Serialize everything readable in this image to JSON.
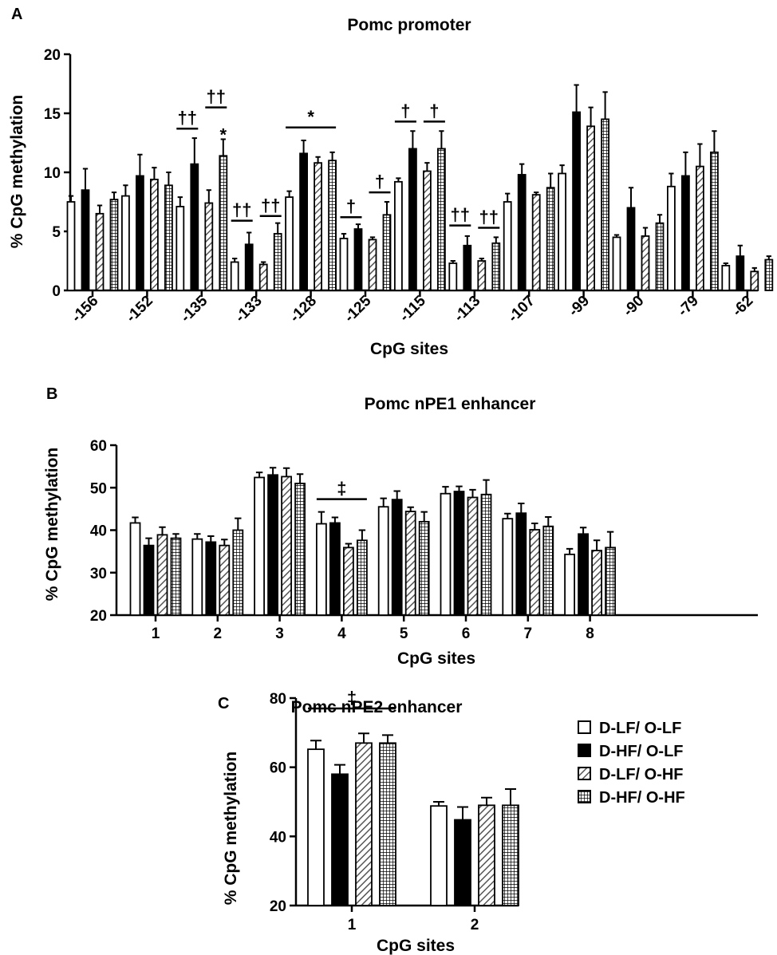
{
  "series": [
    {
      "name": "D-LF/ O-LF",
      "pattern": "white"
    },
    {
      "name": "D-HF/ O-LF",
      "pattern": "black"
    },
    {
      "name": "D-LF/ O-HF",
      "pattern": "hatch"
    },
    {
      "name": "D-HF/ O-HF",
      "pattern": "grid"
    }
  ],
  "chart_data": [
    {
      "panel": "A",
      "type": "bar",
      "title": "Pomc promoter",
      "xlabel": "CpG sites",
      "ylabel": "% CpG methylation",
      "ylim": [
        0,
        20
      ],
      "yticks": [
        0,
        5,
        10,
        15,
        20
      ],
      "categories": [
        "-156",
        "-152",
        "-135",
        "-133",
        "-128",
        "-125",
        "-115",
        "-113",
        "-107",
        "-99",
        "-90",
        "-79",
        "-62"
      ],
      "series": [
        {
          "name": "D-LF/ O-LF",
          "values": [
            7.5,
            8.0,
            7.1,
            2.4,
            7.9,
            4.4,
            9.2,
            2.3,
            7.5,
            9.9,
            4.5,
            8.8,
            2.1
          ],
          "errors": [
            0.5,
            0.9,
            0.8,
            0.3,
            0.5,
            0.4,
            0.3,
            0.2,
            0.7,
            0.7,
            0.2,
            1.1,
            0.2
          ]
        },
        {
          "name": "D-HF/ O-LF",
          "values": [
            8.5,
            9.7,
            10.7,
            3.9,
            11.6,
            5.2,
            12.0,
            3.8,
            9.8,
            15.1,
            7.0,
            9.7,
            2.9
          ],
          "errors": [
            1.8,
            1.8,
            2.2,
            1.0,
            1.1,
            0.4,
            1.5,
            0.8,
            0.9,
            2.3,
            1.7,
            2.0,
            0.9
          ]
        },
        {
          "name": "D-LF/ O-HF",
          "values": [
            6.5,
            9.4,
            7.4,
            2.2,
            10.8,
            4.3,
            10.1,
            2.5,
            8.1,
            13.9,
            4.6,
            10.5,
            1.6
          ],
          "errors": [
            0.7,
            1.0,
            1.1,
            0.2,
            0.5,
            0.2,
            0.7,
            0.2,
            0.2,
            1.6,
            0.7,
            1.9,
            0.3
          ]
        },
        {
          "name": "D-HF/ O-HF",
          "values": [
            7.7,
            8.9,
            11.4,
            4.8,
            11.0,
            6.4,
            12.0,
            4.0,
            8.7,
            14.5,
            5.7,
            11.7,
            2.6
          ],
          "errors": [
            0.6,
            1.1,
            1.4,
            0.9,
            0.7,
            1.1,
            1.5,
            0.5,
            1.2,
            2.3,
            0.7,
            1.8,
            0.3
          ]
        }
      ],
      "annotations": [
        {
          "symbol": "††",
          "x_from": [
            2,
            0
          ],
          "x_to": [
            2,
            1
          ],
          "y": 13.7
        },
        {
          "symbol": "††",
          "x_from": [
            2,
            2
          ],
          "x_to": [
            2,
            3
          ],
          "y": 15.5
        },
        {
          "symbol": "*",
          "x_from": [
            2,
            3
          ],
          "x_to": [
            2,
            3
          ],
          "y": 13.2,
          "no_line": true
        },
        {
          "symbol": "††",
          "x_from": [
            3,
            0
          ],
          "x_to": [
            3,
            1
          ],
          "y": 5.9
        },
        {
          "symbol": "††",
          "x_from": [
            3,
            2
          ],
          "x_to": [
            3,
            3
          ],
          "y": 6.3
        },
        {
          "symbol": "*",
          "x_from": [
            4,
            0
          ],
          "x_to": [
            4,
            3
          ],
          "y": 13.8
        },
        {
          "symbol": "†",
          "x_from": [
            5,
            0
          ],
          "x_to": [
            5,
            1
          ],
          "y": 6.2
        },
        {
          "symbol": "†",
          "x_from": [
            5,
            2
          ],
          "x_to": [
            5,
            3
          ],
          "y": 8.3
        },
        {
          "symbol": "†",
          "x_from": [
            6,
            0
          ],
          "x_to": [
            6,
            1
          ],
          "y": 14.3
        },
        {
          "symbol": "†",
          "x_from": [
            6,
            2
          ],
          "x_to": [
            6,
            3
          ],
          "y": 14.3
        },
        {
          "symbol": "††",
          "x_from": [
            7,
            0
          ],
          "x_to": [
            7,
            1
          ],
          "y": 5.5
        },
        {
          "symbol": "††",
          "x_from": [
            7,
            2
          ],
          "x_to": [
            7,
            3
          ],
          "y": 5.3
        }
      ]
    },
    {
      "panel": "B",
      "type": "bar",
      "title": "Pomc nPE1 enhancer",
      "xlabel": "CpG sites",
      "ylabel": "% CpG methylation",
      "ylim": [
        20,
        60
      ],
      "yticks": [
        20,
        30,
        40,
        50,
        60
      ],
      "categories": [
        "1",
        "2",
        "3",
        "4",
        "5",
        "6",
        "7",
        "8"
      ],
      "series": [
        {
          "name": "D-LF/ O-LF",
          "values": [
            41.7,
            37.9,
            52.4,
            41.5,
            45.5,
            48.6,
            42.7,
            34.3
          ],
          "errors": [
            1.3,
            1.2,
            1.2,
            2.8,
            2.0,
            1.6,
            1.2,
            1.3
          ]
        },
        {
          "name": "D-HF/ O-LF",
          "values": [
            36.4,
            37.2,
            53.0,
            41.7,
            47.2,
            49.1,
            44.0,
            39.1
          ],
          "errors": [
            1.7,
            1.4,
            1.7,
            1.3,
            2.0,
            1.2,
            2.3,
            1.5
          ]
        },
        {
          "name": "D-LF/ O-HF",
          "values": [
            38.9,
            36.4,
            52.6,
            35.9,
            44.4,
            47.7,
            40.1,
            35.2
          ],
          "errors": [
            1.8,
            1.4,
            2.0,
            0.9,
            1.0,
            1.8,
            1.5,
            2.4
          ]
        },
        {
          "name": "D-HF/ O-HF",
          "values": [
            38.1,
            40.0,
            51.0,
            37.6,
            42.0,
            48.4,
            40.9,
            35.9
          ],
          "errors": [
            1.0,
            2.8,
            2.2,
            2.4,
            2.3,
            3.4,
            2.2,
            3.7
          ]
        }
      ],
      "annotations": [
        {
          "symbol": "‡",
          "x_from": [
            3,
            0
          ],
          "x_to": [
            3,
            3
          ],
          "y": 47.3
        }
      ]
    },
    {
      "panel": "C",
      "type": "bar",
      "title": "Pomc nPE2 enhancer",
      "xlabel": "CpG sites",
      "ylabel": "% CpG methylation",
      "ylim": [
        20,
        80
      ],
      "yticks": [
        20,
        40,
        60,
        80
      ],
      "categories": [
        "1",
        "2"
      ],
      "series": [
        {
          "name": "D-LF/ O-LF",
          "values": [
            65.2,
            48.8
          ],
          "errors": [
            2.5,
            1.2
          ]
        },
        {
          "name": "D-HF/ O-LF",
          "values": [
            58.0,
            44.8
          ],
          "errors": [
            2.7,
            3.7
          ]
        },
        {
          "name": "D-LF/ O-HF",
          "values": [
            67.0,
            49.0
          ],
          "errors": [
            2.8,
            2.2
          ]
        },
        {
          "name": "D-HF/ O-HF",
          "values": [
            67.0,
            49.0
          ],
          "errors": [
            2.3,
            4.7
          ]
        }
      ],
      "annotations": [
        {
          "symbol": "‡",
          "x_from": [
            0,
            0
          ],
          "x_to": [
            0,
            3
          ],
          "y": 77.0
        }
      ]
    }
  ]
}
